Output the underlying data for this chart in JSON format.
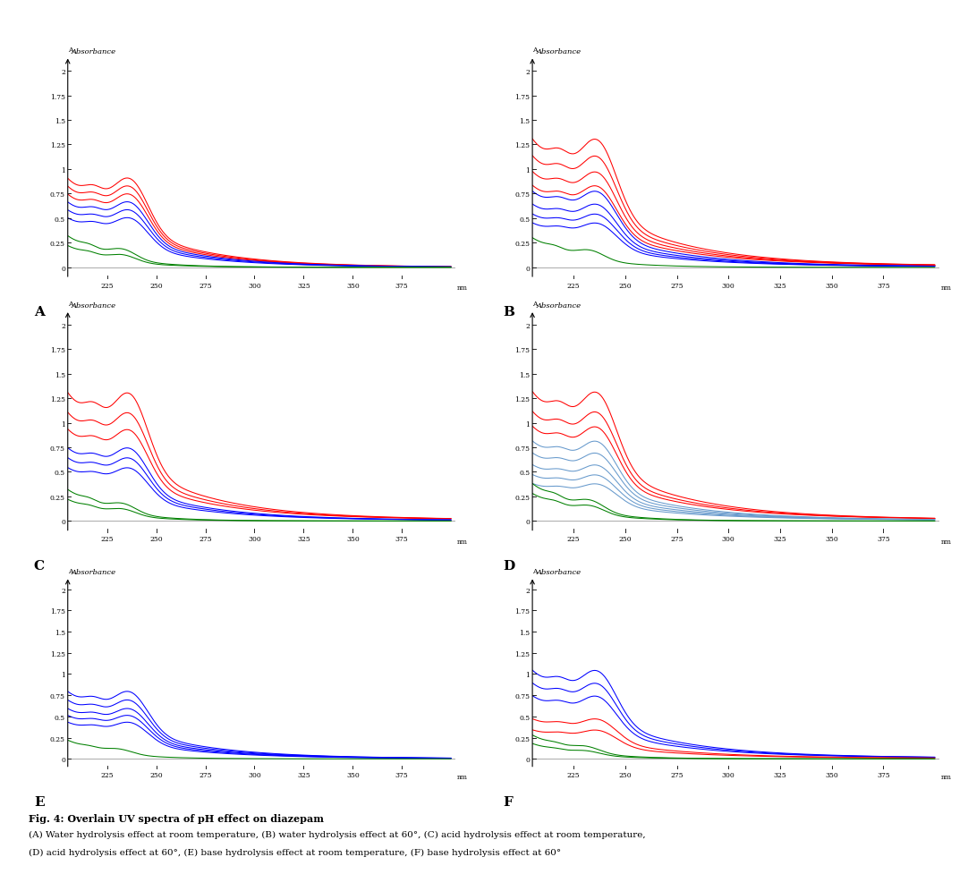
{
  "title": "Fig. 4: Overlain UV spectra of pH effect on diazepam",
  "caption_lines": [
    "(A) Water hydrolysis effect at room temperature, (B) water hydrolysis effect at 60°, (C) acid hydrolysis effect at room temperature,",
    "(D) acid hydrolysis effect at 60°, (E) base hydrolysis effect at room temperature, (F) base hydrolysis effect at 60°"
  ],
  "subplot_labels": [
    "A",
    "B",
    "C",
    "D",
    "E",
    "F"
  ],
  "yticks": [
    0,
    0.25,
    0.5,
    0.75,
    1,
    1.25,
    1.5,
    1.75,
    2
  ],
  "xticks": [
    225,
    250,
    275,
    300,
    325,
    350,
    375
  ],
  "ylim": [
    -0.12,
    2.15
  ],
  "xlim": [
    205,
    400
  ]
}
